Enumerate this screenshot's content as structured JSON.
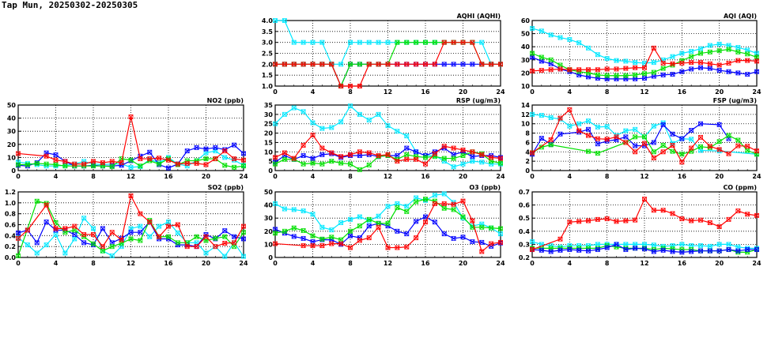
{
  "title": "Tap Mun, 20250302-20250305",
  "series_colors": {
    "red": "#ff0000",
    "green": "#00e000",
    "blue": "#0000ff",
    "cyan": "#00e8ff"
  },
  "chart_data": [
    {
      "type": "line",
      "title": "AQHI (AQHI)",
      "xlim": [
        0,
        24
      ],
      "xticks": [
        0,
        4,
        8,
        12,
        16,
        20,
        24
      ],
      "ylim": [
        1,
        4
      ],
      "yticks": [
        "1.0",
        "1.5",
        "2.0",
        "2.5",
        "3.0",
        "3.5",
        "4.0"
      ],
      "grid": true,
      "series": [
        {
          "name": "cyan",
          "values": [
            4,
            4,
            3,
            3,
            3,
            3,
            2,
            2,
            3,
            3,
            3,
            3,
            3,
            3,
            3,
            3,
            3,
            3,
            3,
            3,
            3,
            3,
            3,
            2,
            null
          ]
        },
        {
          "name": "blue",
          "values": [
            2,
            2,
            2,
            2,
            2,
            2,
            2,
            1,
            2,
            2,
            2,
            2,
            2,
            2,
            2,
            2,
            2,
            2,
            2,
            2,
            2,
            2,
            2,
            2,
            2
          ]
        },
        {
          "name": "green",
          "values": [
            2,
            2,
            2,
            2,
            2,
            2,
            2,
            1,
            2,
            2,
            2,
            2,
            2,
            3,
            3,
            3,
            3,
            3,
            3,
            3,
            3,
            3,
            2,
            2,
            2
          ]
        },
        {
          "name": "red",
          "values": [
            2,
            2,
            2,
            2,
            2,
            2,
            2,
            1,
            1,
            1,
            2,
            2,
            2,
            2,
            2,
            2,
            2,
            2,
            3,
            3,
            3,
            3,
            2,
            2,
            2
          ]
        }
      ]
    },
    {
      "type": "line",
      "title": "AQI (AQI)",
      "xlim": [
        0,
        24
      ],
      "xticks": [
        0,
        4,
        8,
        12,
        16,
        20,
        24
      ],
      "ylim": [
        10,
        60
      ],
      "yticks": [
        "10",
        "20",
        "30",
        "40",
        "50",
        "60"
      ],
      "grid": true,
      "series": [
        {
          "name": "cyan",
          "values": [
            54,
            52,
            49,
            47,
            45.5,
            43,
            39,
            34,
            31,
            29.5,
            29,
            28,
            27.5,
            28,
            30,
            32.5,
            35,
            36.5,
            38.5,
            41,
            42,
            41,
            39.5,
            37.5,
            35
          ]
        },
        {
          "name": "blue",
          "values": [
            32,
            29,
            27,
            23,
            21,
            18.5,
            17,
            16,
            15.5,
            15.5,
            15.5,
            15.5,
            16,
            17.5,
            18.5,
            19,
            21,
            23,
            24,
            23.5,
            22,
            21,
            20,
            19,
            21
          ]
        },
        {
          "name": "green",
          "values": [
            35,
            32,
            30,
            26,
            22.5,
            21,
            20,
            18.5,
            18,
            18,
            18,
            18.5,
            19.5,
            20.5,
            23.5,
            26,
            29.5,
            32.5,
            35,
            36,
            37,
            38,
            36,
            34.5,
            32
          ]
        },
        {
          "name": "red",
          "values": [
            21.5,
            22,
            22.5,
            23,
            22.5,
            22.5,
            22.5,
            22.5,
            23,
            23,
            23.5,
            24,
            24,
            39,
            27.5,
            27,
            27.5,
            28,
            28,
            27,
            26,
            27.5,
            29.5,
            29.5,
            29
          ]
        }
      ]
    },
    {
      "type": "line",
      "title": "NO2 (ppb)",
      "xlim": [
        0,
        24
      ],
      "xticks": [
        0,
        4,
        8,
        12,
        16,
        20,
        24
      ],
      "ylim": [
        0,
        50
      ],
      "yticks": [
        "0",
        "10",
        "20",
        "30",
        "40",
        "50"
      ],
      "grid": true,
      "series": [
        {
          "name": "cyan",
          "values": [
            6.5,
            5.5,
            4.5,
            3.5,
            3.5,
            4,
            5,
            7,
            5,
            4.5,
            5,
            5,
            2.5,
            3,
            8.5,
            6,
            10,
            5,
            3.5,
            7.5,
            13.5,
            15,
            10,
            8,
            4
          ]
        },
        {
          "name": "blue",
          "values": [
            4,
            3.5,
            6,
            13.5,
            12,
            7,
            3.5,
            3.5,
            4,
            3.5,
            3.5,
            4,
            7.5,
            11,
            14,
            4.5,
            2,
            5,
            15,
            17.5,
            16.5,
            17.5,
            16,
            19.5,
            13
          ]
        },
        {
          "name": "green",
          "values": [
            4.5,
            4.5,
            5.5,
            5,
            4.5,
            3.5,
            3.5,
            3.5,
            3.5,
            3.5,
            3,
            9,
            8,
            3.5,
            7.5,
            5,
            9,
            4.5,
            7.5,
            7.5,
            9,
            9,
            4,
            2.5,
            3.5
          ]
        },
        {
          "name": "red",
          "values": [
            13,
            null,
            null,
            11,
            8,
            7,
            5,
            5,
            7,
            6,
            7,
            6,
            41,
            9,
            9,
            9.5,
            8,
            5,
            5.5,
            5.5,
            4.5,
            9,
            15,
            9,
            8
          ]
        }
      ]
    },
    {
      "type": "line",
      "title": "RSP (ug/m3)",
      "xlim": [
        0,
        24
      ],
      "xticks": [
        0,
        4,
        8,
        12,
        16,
        20,
        24
      ],
      "ylim": [
        0,
        35
      ],
      "yticks": [
        "0",
        "5",
        "10",
        "15",
        "20",
        "25",
        "30",
        "35"
      ],
      "grid": true,
      "series": [
        {
          "name": "cyan",
          "values": [
            25,
            30,
            33.5,
            31.5,
            25.5,
            22.5,
            23,
            26,
            34.5,
            30,
            27,
            30,
            24,
            21,
            18.5,
            10,
            8,
            8,
            5,
            2,
            3.5,
            5,
            4.5,
            3.5,
            3.5
          ]
        },
        {
          "name": "blue",
          "values": [
            4.5,
            8,
            6,
            8,
            6.5,
            8.5,
            9,
            7,
            8,
            8,
            8.5,
            7.5,
            8,
            8,
            12,
            10,
            8,
            10,
            12,
            8.5,
            10,
            7.5,
            8,
            8,
            7
          ]
        },
        {
          "name": "green",
          "values": [
            3.5,
            6,
            6,
            3.5,
            4,
            3.5,
            5,
            4,
            3.5,
            0.5,
            3,
            7.5,
            8,
            6,
            8.5,
            7.5,
            7,
            7.5,
            6.5,
            6.5,
            8,
            10,
            9,
            5,
            4
          ]
        },
        {
          "name": "red",
          "values": [
            7,
            9.5,
            6.5,
            13.5,
            19,
            12,
            9.5,
            7.5,
            8.5,
            10,
            9.5,
            8,
            8.5,
            5,
            6,
            6,
            3.5,
            9,
            13,
            12,
            11,
            10,
            8.5,
            7,
            6.5
          ]
        }
      ]
    },
    {
      "type": "line",
      "title": "FSP (ug/m3)",
      "xlim": [
        0,
        24
      ],
      "xticks": [
        0,
        4,
        8,
        12,
        16,
        20,
        24
      ],
      "ylim": [
        0,
        14
      ],
      "yticks": [
        "0",
        "2",
        "4",
        "6",
        "8",
        "10",
        "12",
        "14"
      ],
      "grid": true,
      "series": [
        {
          "name": "cyan",
          "values": [
            12,
            11.8,
            11.3,
            11,
            9.5,
            10,
            10.6,
            9.3,
            9.4,
            7.5,
            8.5,
            8.8,
            7.2,
            9.5,
            10.2,
            5.8,
            6.8,
            6.7,
            4.3,
            null,
            4.2,
            null,
            null,
            null,
            3.5
          ]
        },
        {
          "name": "blue",
          "values": [
            3.5,
            6.9,
            5.6,
            7.8,
            null,
            8.2,
            8.8,
            5.7,
            6.3,
            6.6,
            7.2,
            5.3,
            5.3,
            6,
            9.8,
            7.8,
            6.8,
            8.6,
            10,
            null,
            9.8,
            6.8,
            null,
            null,
            null
          ]
        },
        {
          "name": "green",
          "values": [
            3.8,
            5,
            5.5,
            null,
            null,
            null,
            4.1,
            3.7,
            null,
            null,
            6,
            7.2,
            7.2,
            4,
            5.4,
            4.1,
            3.5,
            4.1,
            5.1,
            4.9,
            6.2,
            7.5,
            6.5,
            4.3,
            3.5
          ]
        },
        {
          "name": "red",
          "values": [
            3.8,
            null,
            6.6,
            11.2,
            13,
            8.5,
            7.5,
            6.8,
            6.7,
            7.2,
            6,
            4,
            5.8,
            2.7,
            4,
            5.4,
            1.8,
            4.8,
            7.1,
            5.2,
            4.5,
            3.6,
            5.3,
            5.2,
            4.2
          ]
        }
      ]
    },
    {
      "type": "line",
      "title": "SO2 (ppb)",
      "xlim": [
        0,
        24
      ],
      "xticks": [
        0,
        4,
        8,
        12,
        16,
        20,
        24
      ],
      "ylim": [
        0,
        1.2
      ],
      "yticks": [
        "0.0",
        "0.2",
        "0.4",
        "0.6",
        "0.8",
        "1.0",
        "1.2"
      ],
      "grid": true,
      "series": [
        {
          "name": "cyan",
          "values": [
            0.36,
            0.23,
            0.08,
            0.23,
            0.42,
            0.08,
            0.34,
            0.72,
            0.53,
            0.12,
            0.03,
            0.2,
            0.53,
            0.57,
            0.38,
            0.57,
            0.65,
            0.45,
            0.27,
            0.27,
            0.08,
            0.2,
            0.02,
            0.27,
            0.02
          ]
        },
        {
          "name": "blue",
          "values": [
            0.45,
            0.5,
            0.27,
            0.65,
            0.5,
            0.5,
            0.42,
            0.27,
            0.23,
            0.53,
            0.27,
            0.35,
            0.46,
            0.46,
            0.65,
            0.34,
            0.34,
            0.23,
            0.23,
            0.2,
            0.42,
            0.34,
            0.49,
            0.38,
            0.34
          ]
        },
        {
          "name": "green",
          "values": [
            0.03,
            null,
            1.03,
            0.99,
            0.64,
            0.46,
            0.5,
            0.38,
            0.25,
            0.12,
            0.2,
            0.26,
            0.34,
            0.31,
            0.68,
            0.38,
            0.38,
            0.27,
            0.27,
            0.38,
            0.31,
            0.35,
            0.38,
            0.2,
            0.46
          ]
        },
        {
          "name": "red",
          "values": [
            0.35,
            0.5,
            null,
            0.96,
            0.53,
            0.53,
            0.57,
            0.42,
            0.42,
            0.2,
            0.46,
            0.32,
            1.13,
            0.8,
            0.65,
            0.38,
            0.57,
            0.6,
            0.2,
            0.2,
            0.38,
            0.2,
            0.26,
            0.27,
            0.57
          ]
        }
      ]
    },
    {
      "type": "line",
      "title": "O3 (ppb)",
      "xlim": [
        0,
        24
      ],
      "xticks": [
        0,
        4,
        8,
        12,
        16,
        20,
        24
      ],
      "ylim": [
        0,
        50
      ],
      "yticks": [
        "0",
        "10",
        "20",
        "30",
        "40",
        "50"
      ],
      "grid": true,
      "series": [
        {
          "name": "cyan",
          "values": [
            41,
            37,
            36.5,
            35.5,
            33,
            23,
            21,
            26.5,
            29,
            31,
            28,
            31.5,
            39,
            41,
            39,
            45.5,
            43.5,
            47.5,
            48.5,
            42,
            30,
            24,
            25.5,
            22.5,
            18
          ]
        },
        {
          "name": "blue",
          "values": [
            21.5,
            18.5,
            16,
            14.5,
            12,
            13.5,
            13.5,
            10,
            16.5,
            15,
            24,
            26,
            24,
            20,
            18,
            27.5,
            31,
            27,
            18,
            14.5,
            15.5,
            12,
            11.5,
            8.5,
            11
          ]
        },
        {
          "name": "green",
          "values": [
            18.5,
            20,
            22.5,
            20.5,
            16.5,
            14,
            15.5,
            13.5,
            20,
            24,
            29,
            26,
            26,
            38,
            35,
            42.5,
            44.5,
            43,
            37.5,
            36.5,
            31,
            23,
            23,
            22.5,
            22
          ]
        },
        {
          "name": "red",
          "values": [
            10.5,
            null,
            null,
            9,
            9,
            9,
            10.5,
            10.5,
            7.5,
            13,
            15,
            23,
            7.5,
            7.5,
            8,
            15,
            27,
            41,
            41,
            40.5,
            43,
            28,
            4.5,
            10.5,
            11.5
          ]
        }
      ]
    },
    {
      "type": "line",
      "title": "CO (ppm)",
      "xlim": [
        0,
        24
      ],
      "xticks": [
        0,
        4,
        8,
        12,
        16,
        20,
        24
      ],
      "ylim": [
        0.2,
        0.7
      ],
      "yticks": [
        "0.2",
        "0.3",
        "0.4",
        "0.5",
        "0.6",
        "0.7"
      ],
      "grid": true,
      "series": [
        {
          "name": "cyan",
          "values": [
            0.32,
            0.3,
            0.29,
            0.28,
            0.29,
            0.29,
            0.29,
            0.3,
            0.3,
            0.3,
            0.3,
            0.3,
            0.3,
            0.295,
            0.285,
            0.29,
            0.3,
            0.29,
            0.29,
            0.285,
            0.3,
            0.3,
            0.28,
            0.27,
            0.27
          ]
        },
        {
          "name": "green",
          "values": [
            0.27,
            0.27,
            0.27,
            0.27,
            0.27,
            0.27,
            0.27,
            0.27,
            0.29,
            0.28,
            0.27,
            0.27,
            0.27,
            0.26,
            0.27,
            0.265,
            0.26,
            0.26,
            0.25,
            0.25,
            0.25,
            0.26,
            0.24,
            0.24,
            0.26
          ]
        },
        {
          "name": "blue",
          "values": [
            0.26,
            0.255,
            0.245,
            0.255,
            0.26,
            0.255,
            0.25,
            0.26,
            0.275,
            0.3,
            0.26,
            0.27,
            0.265,
            0.245,
            0.255,
            0.245,
            0.24,
            0.245,
            0.25,
            0.25,
            0.25,
            0.26,
            0.25,
            0.26,
            0.26
          ]
        },
        {
          "name": "red",
          "values": [
            0.26,
            null,
            null,
            0.34,
            0.47,
            0.475,
            0.48,
            0.49,
            0.495,
            0.475,
            0.48,
            0.485,
            0.645,
            0.56,
            0.56,
            0.535,
            0.495,
            0.48,
            0.485,
            0.465,
            0.435,
            0.49,
            0.555,
            0.53,
            0.52
          ]
        }
      ]
    }
  ]
}
